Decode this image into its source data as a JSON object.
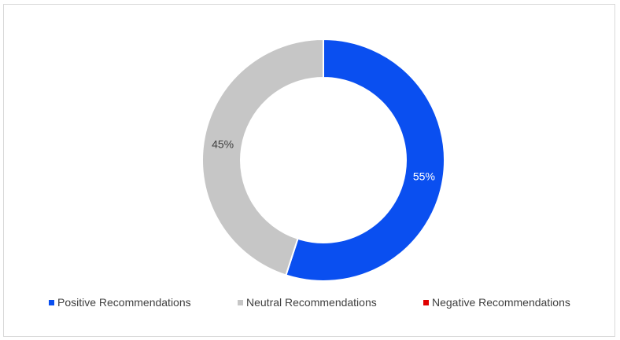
{
  "chart_data": {
    "type": "pie",
    "variant": "donut",
    "series": [
      {
        "name": "Positive Recommendations",
        "value": 55,
        "label": "55%",
        "color": "#0a4ff0",
        "label_color": "#ffffff"
      },
      {
        "name": "Neutral Recommendations",
        "value": 45,
        "label": "45%",
        "color": "#c6c6c6",
        "label_color": "#404040"
      },
      {
        "name": "Negative Recommendations",
        "value": 0,
        "label": "",
        "color": "#e00000",
        "label_color": "#404040"
      }
    ],
    "legend_position": "bottom",
    "title": ""
  }
}
